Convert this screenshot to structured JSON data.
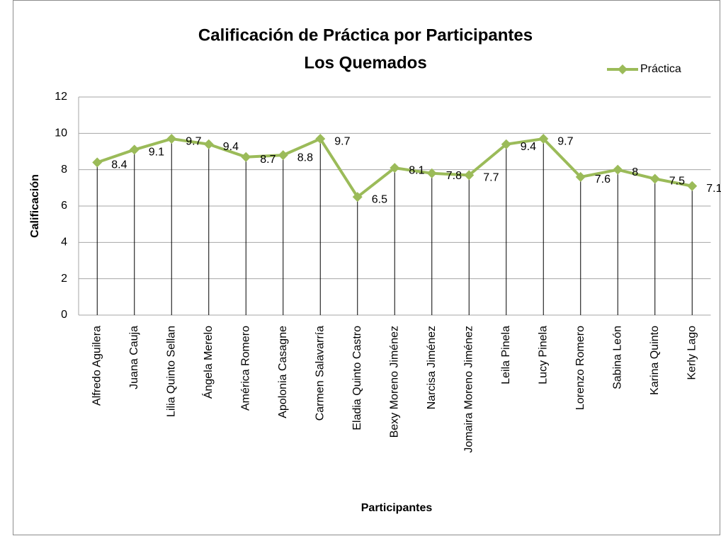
{
  "chart_data": {
    "type": "line",
    "title": "Calificación de Práctica por Participantes",
    "subtitle": "Los Quemados",
    "x_label": "Participantes",
    "y_label": "Calificación",
    "categories": [
      "Alfredo Aguilera",
      "Juana Cauja",
      "Lilia Quinto Sellan",
      "Ángela Merelo",
      "América Romero",
      "Apolonia Casagne",
      "Carmen Salavarría",
      "Eladia Quinto Castro",
      "Bexy Moreno Jiménez",
      "Narcisa Jiménez",
      "Jomaira Moreno Jiménez",
      "Leila Pinela",
      "Lucy Pinela",
      "Lorenzo Romero",
      "Sabina León",
      "Karina Quinto",
      "Kerly Lago"
    ],
    "series": [
      {
        "name": "Práctica",
        "color": "#9bbb59",
        "values": [
          8.4,
          9.1,
          9.7,
          9.4,
          8.7,
          8.8,
          9.7,
          6.5,
          8.1,
          7.8,
          7.7,
          9.4,
          9.7,
          7.6,
          8,
          7.5,
          7.1
        ]
      }
    ],
    "ylim": [
      0,
      12
    ],
    "yticks": [
      0,
      2,
      4,
      6,
      8,
      10,
      12
    ],
    "grid": true,
    "legend": "top-right",
    "drop_lines": true
  }
}
